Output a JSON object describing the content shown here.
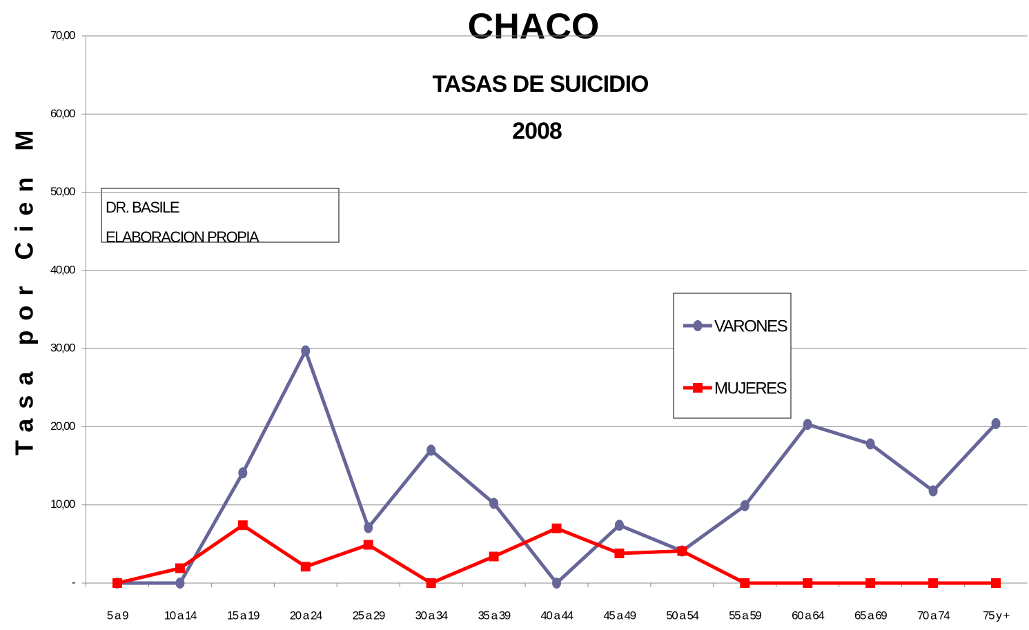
{
  "chart_data": {
    "type": "line",
    "title": "CHACO",
    "subtitle": [
      "TASAS DE SUICIDIO",
      "2008"
    ],
    "y_label": "Tasa por Cien M",
    "annotation": [
      "DR. BASILE",
      "ELABORACION PROPIA"
    ],
    "categories": [
      "5 a 9",
      "10 a 14",
      "15 a 19",
      "20 a 24",
      "25 a 29",
      "30 a 34",
      "35 a 39",
      "40 a 44",
      "45 a 49",
      "50 a 54",
      "55 a 59",
      "60 a 64",
      "65 a 69",
      "70 a 74",
      "75 y +"
    ],
    "series": [
      {
        "name": "VARONES",
        "color": "#666699",
        "marker": "circle",
        "values": [
          0,
          0,
          14.1,
          29.7,
          7.1,
          17.0,
          10.2,
          0,
          7.4,
          4.1,
          9.9,
          20.3,
          17.8,
          11.8,
          20.4
        ]
      },
      {
        "name": "MUJERES",
        "color": "#ff0000",
        "marker": "square",
        "values": [
          0,
          1.9,
          7.4,
          2.1,
          4.9,
          0,
          3.4,
          7.0,
          3.8,
          4.1,
          0,
          0,
          0,
          0,
          0
        ]
      }
    ],
    "ylim": [
      0,
      70
    ],
    "yticks": [
      {
        "value": 0,
        "label": "-"
      },
      {
        "value": 10,
        "label": "10,00"
      },
      {
        "value": 20,
        "label": "20,00"
      },
      {
        "value": 30,
        "label": "30,00"
      },
      {
        "value": 40,
        "label": "40,00"
      },
      {
        "value": 50,
        "label": "50,00"
      },
      {
        "value": 60,
        "label": "60,00"
      },
      {
        "value": 70,
        "label": "70,00"
      }
    ],
    "grid": true,
    "legend": "right"
  }
}
